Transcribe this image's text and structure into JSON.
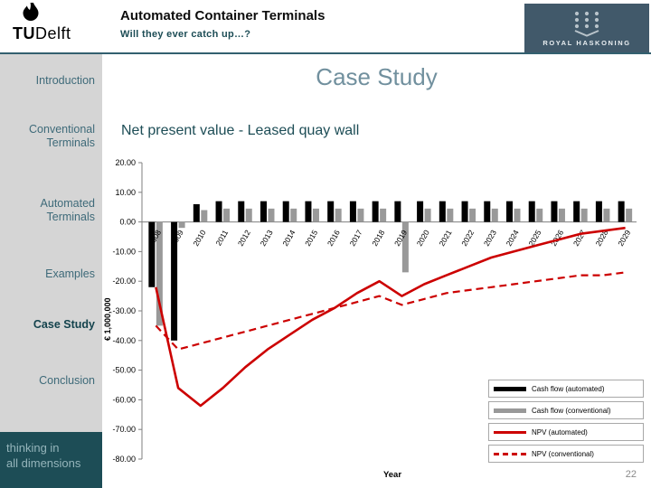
{
  "slide": {
    "page_number": "22"
  },
  "header": {
    "title": "Automated Container Terminals",
    "subtitle": "Will they ever catch up…?",
    "tudelft_tu": "TU",
    "tudelft_delft": "Delft",
    "royal_haskoning": "ROYAL HASKONING"
  },
  "sidebar": {
    "items": [
      {
        "label": "Introduction",
        "active": false
      },
      {
        "label": "Conventional Terminals",
        "active": false
      },
      {
        "label": "Automated Terminals",
        "active": false
      },
      {
        "label": "Examples",
        "active": false
      },
      {
        "label": "Case Study",
        "active": true
      },
      {
        "label": "Conclusion",
        "active": false
      }
    ],
    "tagline_line1": "thinking in",
    "tagline_line2": "all dimensions"
  },
  "main": {
    "title": "Case Study",
    "chart_heading": "Net present value - Leased quay wall"
  },
  "colors": {
    "accent_teal": "#1d4d56",
    "sidebar_bg": "#d5d5d5",
    "logo_panel": "#41596a",
    "bar_automated": "#000000",
    "bar_conventional": "#999999",
    "npv_red": "#cc0000"
  },
  "chart_data": {
    "type": "bar",
    "subtype": "combo-bar-line",
    "title": "Net present value - Leased quay wall",
    "xlabel": "Year",
    "ylabel": "€ 1,000,000",
    "ylim": [
      -80,
      20
    ],
    "ytick_step": 10,
    "grid": false,
    "legend_position": "bottom-right",
    "categories": [
      "2008",
      "2009",
      "2010",
      "2011",
      "2012",
      "2013",
      "2014",
      "2015",
      "2016",
      "2017",
      "2018",
      "2019",
      "2020",
      "2021",
      "2022",
      "2023",
      "2024",
      "2025",
      "2026",
      "2027",
      "2028",
      "2029"
    ],
    "series": [
      {
        "name": "Cash flow (automated)",
        "type": "bar",
        "color": "#000000",
        "values": [
          -22,
          -40,
          6,
          7,
          7,
          7,
          7,
          7,
          7,
          7,
          7,
          7,
          7,
          7,
          7,
          7,
          7,
          7,
          7,
          7,
          7,
          7
        ]
      },
      {
        "name": "Cash flow (conventional)",
        "type": "bar",
        "color": "#999999",
        "values": [
          -35,
          -2,
          4,
          4.5,
          4.5,
          4.5,
          4.5,
          4.5,
          4.5,
          4.5,
          4.5,
          -17,
          4.5,
          4.5,
          4.5,
          4.5,
          4.5,
          4.5,
          4.5,
          4.5,
          4.5,
          4.5
        ]
      },
      {
        "name": "NPV (automated)",
        "type": "line",
        "style": "solid",
        "color": "#cc0000",
        "values": [
          -22,
          -56,
          -62,
          -56,
          -49,
          -43,
          -38,
          -33,
          -29,
          -24,
          -20,
          -25,
          -21,
          -18,
          -15,
          -12,
          -10,
          -8,
          -6,
          -4,
          -3,
          -2
        ]
      },
      {
        "name": "NPV (conventional)",
        "type": "line",
        "style": "dashed",
        "color": "#cc0000",
        "values": [
          -35,
          -43,
          -41,
          -39,
          -37,
          -35,
          -33,
          -31,
          -29,
          -27,
          -25,
          -28,
          -26,
          -24,
          -23,
          -22,
          -21,
          -20,
          -19,
          -18,
          -18,
          -17
        ]
      }
    ]
  }
}
